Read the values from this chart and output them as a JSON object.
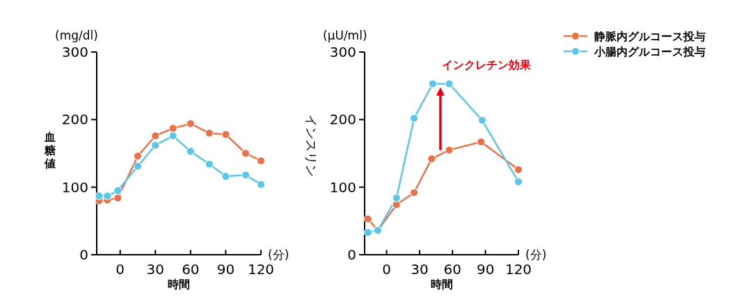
{
  "chart_data": [
    {
      "type": "line",
      "xlabel": "時間",
      "ylabel": "血糖値",
      "annotations": [
        "(mg/dl)",
        "(分)"
      ],
      "xlim": [
        -20,
        120
      ],
      "xticks": [
        0,
        30,
        60,
        90,
        120
      ],
      "ylim": [
        0,
        300
      ],
      "yticks": [
        0,
        100,
        200,
        300
      ],
      "marker": "circle",
      "line_style": "solid",
      "grid": false,
      "series": [
        {
          "color": "#e8734a",
          "x": [
            -18,
            -11,
            -2,
            15,
            30,
            45,
            60,
            76,
            90,
            107,
            120
          ],
          "values": [
            80,
            81,
            84,
            146,
            176,
            187,
            194,
            180,
            178,
            150,
            139
          ]
        },
        {
          "color": "#5bc5ea",
          "x": [
            -18,
            -11,
            -2,
            15,
            30,
            45,
            60,
            76,
            90,
            107,
            120
          ],
          "values": [
            87,
            87,
            95,
            131,
            162,
            176,
            153,
            134,
            116,
            118,
            104
          ]
        }
      ]
    },
    {
      "type": "line",
      "xlabel": "時間",
      "ylabel": "インスリン",
      "annotations": [
        "(μU/ml)",
        "(分)",
        {
          "text": "インクレチン効果",
          "x": 49,
          "y": 253
        }
      ],
      "xlim": [
        -20,
        120
      ],
      "xticks": [
        0,
        30,
        60,
        90,
        120
      ],
      "ylim": [
        0,
        300
      ],
      "yticks": [
        0,
        100,
        200,
        300
      ],
      "marker": "circle",
      "line_style": "solid",
      "grid": false,
      "legend": "right",
      "series": [
        {
          "name": "静脈内グルコース投与",
          "color": "#e8734a",
          "x": [
            -17,
            -8,
            9,
            25,
            41,
            57,
            86,
            120
          ],
          "values": [
            53,
            36,
            74,
            92,
            142,
            155,
            167,
            126
          ]
        },
        {
          "name": "小腸内グルコース投与",
          "color": "#5bc5ea",
          "x": [
            -17,
            -8,
            9,
            25,
            42,
            57,
            87,
            120
          ],
          "values": [
            33,
            36,
            84,
            202,
            253,
            253,
            199,
            108
          ]
        }
      ]
    }
  ]
}
